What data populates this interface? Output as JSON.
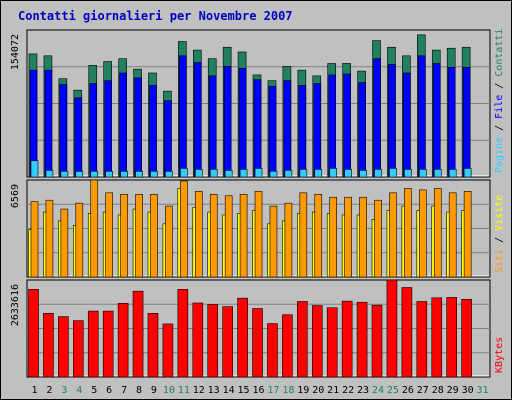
{
  "title": "Contatti giornalieri per Novembre 2007",
  "colors": {
    "background": "#c0c0c0",
    "title": "#0000c0",
    "pagine": "#0000ff",
    "file": "#208060",
    "contatti": "#33ccff",
    "siti": "#ff9900",
    "visite": "#ffff00",
    "kbytes": "#ff0000",
    "weekend_label": "#208060"
  },
  "chart_data": [
    {
      "type": "bar",
      "panel": "pagine-file-contatti",
      "y_max_label": "154072",
      "right_label": [
        {
          "text": "Pagine",
          "color": "#33ccff"
        },
        {
          "text": " / ",
          "color": "#000000"
        },
        {
          "text": "File",
          "color": "#0000ff"
        },
        {
          "text": " / ",
          "color": "#000000"
        },
        {
          "text": "Contatti",
          "color": "#208060"
        }
      ],
      "ylim": [
        0,
        154072
      ],
      "categories": [
        "1",
        "2",
        "3",
        "4",
        "5",
        "6",
        "7",
        "8",
        "9",
        "10",
        "11",
        "12",
        "13",
        "14",
        "15",
        "16",
        "17",
        "18",
        "19",
        "20",
        "21",
        "22",
        "23",
        "24",
        "25",
        "26",
        "27",
        "28",
        "29",
        "30",
        "31"
      ],
      "series": [
        {
          "name": "Contatti",
          "values": [
            129000,
            127000,
            103000,
            91000,
            117000,
            121000,
            124000,
            113000,
            109000,
            90000,
            142000,
            133000,
            124000,
            136000,
            131000,
            107000,
            101000,
            116000,
            112000,
            106000,
            119000,
            119000,
            111000,
            143000,
            136000,
            127000,
            149000,
            133000,
            135000,
            136000,
            null
          ]
        },
        {
          "name": "File",
          "values": [
            112000,
            112000,
            97000,
            83000,
            98000,
            101000,
            109000,
            104000,
            96000,
            80000,
            127000,
            120000,
            106000,
            116000,
            114000,
            102000,
            95000,
            101000,
            96000,
            98000,
            107000,
            108000,
            99000,
            124000,
            118000,
            109000,
            127000,
            119000,
            115000,
            115000,
            null
          ]
        },
        {
          "name": "Pagine",
          "values": [
            17000,
            7000,
            6000,
            6000,
            6000,
            6000,
            6000,
            6000,
            6000,
            6000,
            9000,
            8000,
            8000,
            7000,
            8000,
            9000,
            6000,
            7000,
            8000,
            8000,
            9000,
            8000,
            7000,
            8000,
            9000,
            8000,
            8000,
            8000,
            8000,
            9000,
            null
          ]
        }
      ]
    },
    {
      "type": "bar",
      "panel": "siti-visite",
      "y_max_label": "6569",
      "right_label": [
        {
          "text": "Siti",
          "color": "#ff9900"
        },
        {
          "text": " / ",
          "color": "#000000"
        },
        {
          "text": "Visite",
          "color": "#ffff00"
        }
      ],
      "ylim": [
        0,
        6569
      ],
      "categories": [
        "1",
        "2",
        "3",
        "4",
        "5",
        "6",
        "7",
        "8",
        "9",
        "10",
        "11",
        "12",
        "13",
        "14",
        "15",
        "16",
        "17",
        "18",
        "19",
        "20",
        "21",
        "22",
        "23",
        "24",
        "25",
        "26",
        "27",
        "28",
        "29",
        "30",
        "31"
      ],
      "series": [
        {
          "name": "Siti",
          "values": [
            5100,
            5200,
            4600,
            5000,
            6569,
            5700,
            5600,
            5600,
            5600,
            4800,
            6500,
            5800,
            5600,
            5500,
            5600,
            5800,
            4800,
            5000,
            5700,
            5600,
            5400,
            5400,
            5400,
            5200,
            5700,
            6000,
            5900,
            6000,
            5700,
            5800,
            null
          ]
        },
        {
          "name": "Visite",
          "values": [
            3200,
            4400,
            3800,
            3500,
            4300,
            4400,
            4200,
            4600,
            4400,
            3600,
            6000,
            4700,
            4400,
            4200,
            4300,
            4500,
            3600,
            3800,
            4300,
            4400,
            4300,
            4200,
            4200,
            3900,
            4500,
            4800,
            4500,
            4800,
            4400,
            4500,
            null
          ]
        }
      ]
    },
    {
      "type": "bar",
      "panel": "kbytes",
      "y_max_label": "2633616",
      "right_label": [
        {
          "text": "KBytes",
          "color": "#ff0000"
        }
      ],
      "ylim": [
        0,
        2633616
      ],
      "categories": [
        "1",
        "2",
        "3",
        "4",
        "5",
        "6",
        "7",
        "8",
        "9",
        "10",
        "11",
        "12",
        "13",
        "14",
        "15",
        "16",
        "17",
        "18",
        "19",
        "20",
        "21",
        "22",
        "23",
        "24",
        "25",
        "26",
        "27",
        "28",
        "29",
        "30",
        "31"
      ],
      "series": [
        {
          "name": "KBytes",
          "values": [
            2380000,
            1730000,
            1640000,
            1530000,
            1790000,
            1790000,
            2000000,
            2330000,
            1730000,
            1440000,
            2380000,
            2010000,
            1970000,
            1910000,
            2140000,
            1860000,
            1450000,
            1690000,
            2050000,
            1940000,
            1880000,
            2060000,
            2030000,
            1950000,
            2633616,
            2430000,
            2050000,
            2150000,
            2160000,
            2110000,
            null
          ]
        }
      ]
    }
  ],
  "x_axis": {
    "labels": [
      "1",
      "2",
      "3",
      "4",
      "5",
      "6",
      "7",
      "8",
      "9",
      "10",
      "11",
      "12",
      "13",
      "14",
      "15",
      "16",
      "17",
      "18",
      "19",
      "20",
      "21",
      "22",
      "23",
      "24",
      "25",
      "26",
      "27",
      "28",
      "29",
      "30",
      "31"
    ],
    "weekend_days": [
      "3",
      "4",
      "10",
      "11",
      "17",
      "18",
      "24",
      "25",
      "31"
    ]
  }
}
